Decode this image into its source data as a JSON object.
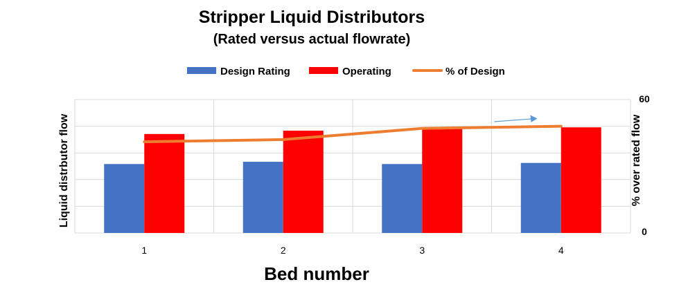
{
  "chart_data": {
    "type": "bar",
    "title": "Stripper Liquid Distributors",
    "subtitle": "(Rated versus actual flowrate)",
    "xlabel": "Bed number",
    "ylabel": "Liquid distrbutor flow",
    "y2label": "% over rated flow",
    "categories": [
      "1",
      "2",
      "3",
      "4"
    ],
    "series": [
      {
        "name": "Design Rating",
        "type": "bar",
        "axis": "left",
        "color": "#4472C4",
        "values": [
          31,
          32,
          31,
          31.5
        ]
      },
      {
        "name": "Operating",
        "type": "bar",
        "axis": "left",
        "color": "#FF0000",
        "values": [
          44.5,
          46,
          47,
          47.5
        ]
      },
      {
        "name": "% of Design",
        "type": "line",
        "axis": "right",
        "color": "#ED7D31",
        "values": [
          41,
          42,
          47,
          48
        ]
      }
    ],
    "ylim": [
      0,
      60
    ],
    "y2lim": [
      0,
      60
    ],
    "y2_tick_labels": [
      "0",
      "60"
    ],
    "legend_position": "top",
    "grid": true,
    "annotations": [
      {
        "type": "arrow",
        "color": "#5B9BD5",
        "near_category": "4"
      }
    ]
  }
}
